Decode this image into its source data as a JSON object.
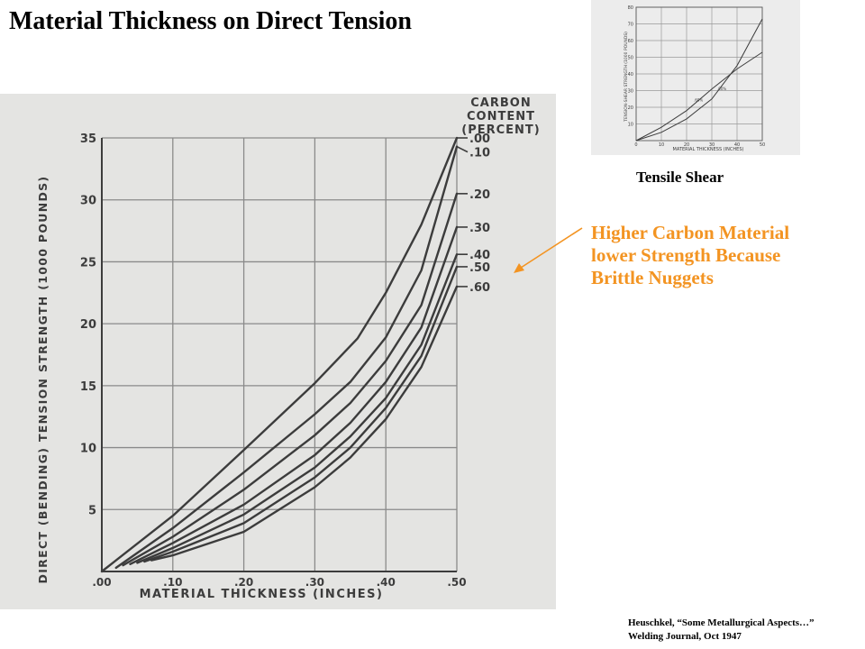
{
  "slide": {
    "title": "Material Thickness on Direct Tension",
    "annotation_lines": [
      "Higher Carbon Material",
      "lower Strength Because",
      "Brittle Nuggets"
    ],
    "thumbnail_caption": "Tensile Shear",
    "citation_lines": [
      "Heuschkel, “Some Metallurgical Aspects…”",
      "Welding Journal, Oct 1947"
    ],
    "colors": {
      "annotation": "#f39422",
      "ink": "#3c3c3c",
      "scan_bg": "#e4e4e2"
    }
  },
  "chart_data": [
    {
      "type": "line",
      "xlabel": "MATERIAL THICKNESS (INCHES)",
      "ylabel": "DIRECT (BENDING) TENSION STRENGTH (1000 POUNDS)",
      "xlim": [
        0,
        0.5
      ],
      "ylim": [
        0,
        35
      ],
      "x_ticks": [
        ".00",
        ".10",
        ".20",
        ".30",
        ".40",
        ".50"
      ],
      "y_ticks": [
        "5",
        "10",
        "15",
        "20",
        "25",
        "30",
        "35"
      ],
      "grid": true,
      "legend_title": [
        "CARBON",
        "CONTENT",
        "(PERCENT)"
      ],
      "legend_placement": "right",
      "series": [
        {
          "name": ".00",
          "points": [
            [
              0,
              0
            ],
            [
              0.1,
              4.5
            ],
            [
              0.2,
              9.8
            ],
            [
              0.3,
              15.2
            ],
            [
              0.36,
              18.8
            ],
            [
              0.4,
              22.5
            ],
            [
              0.45,
              28
            ],
            [
              0.5,
              35
            ]
          ]
        },
        {
          "name": ".10",
          "points": [
            [
              0.02,
              0.3
            ],
            [
              0.1,
              3.5
            ],
            [
              0.2,
              8.0
            ],
            [
              0.3,
              12.7
            ],
            [
              0.35,
              15.3
            ],
            [
              0.4,
              18.9
            ],
            [
              0.45,
              24.3
            ],
            [
              0.5,
              34.3
            ]
          ]
        },
        {
          "name": ".20",
          "points": [
            [
              0.03,
              0.5
            ],
            [
              0.1,
              2.8
            ],
            [
              0.2,
              6.6
            ],
            [
              0.3,
              11.0
            ],
            [
              0.35,
              13.6
            ],
            [
              0.4,
              17.0
            ],
            [
              0.45,
              21.5
            ],
            [
              0.5,
              30.5
            ]
          ]
        },
        {
          "name": ".30",
          "points": [
            [
              0.04,
              0.6
            ],
            [
              0.1,
              2.3
            ],
            [
              0.2,
              5.4
            ],
            [
              0.3,
              9.4
            ],
            [
              0.35,
              12.0
            ],
            [
              0.4,
              15.3
            ],
            [
              0.45,
              19.7
            ],
            [
              0.5,
              27.8
            ]
          ]
        },
        {
          "name": ".40",
          "points": [
            [
              0.05,
              0.7
            ],
            [
              0.1,
              1.9
            ],
            [
              0.2,
              4.6
            ],
            [
              0.3,
              8.4
            ],
            [
              0.35,
              10.9
            ],
            [
              0.4,
              14.0
            ],
            [
              0.45,
              18.3
            ],
            [
              0.5,
              25.6
            ]
          ]
        },
        {
          "name": ".50",
          "points": [
            [
              0.06,
              0.8
            ],
            [
              0.1,
              1.6
            ],
            [
              0.2,
              3.9
            ],
            [
              0.3,
              7.6
            ],
            [
              0.35,
              10.0
            ],
            [
              0.4,
              13.2
            ],
            [
              0.45,
              17.4
            ],
            [
              0.5,
              24.6
            ]
          ]
        },
        {
          "name": ".60",
          "points": [
            [
              0.07,
              0.9
            ],
            [
              0.1,
              1.3
            ],
            [
              0.2,
              3.2
            ],
            [
              0.3,
              6.8
            ],
            [
              0.35,
              9.2
            ],
            [
              0.4,
              12.3
            ],
            [
              0.45,
              16.5
            ],
            [
              0.5,
              23.0
            ]
          ]
        }
      ]
    },
    {
      "type": "line",
      "xlabel": "MATERIAL THICKNESS (INCHES)",
      "ylabel": "TENSION-SHEAR STRENGTH (1000 POUNDS)",
      "xlim": [
        0,
        50
      ],
      "ylim": [
        0,
        80
      ],
      "x_ticks": [
        "0",
        "10",
        "20",
        "30",
        "40",
        "50"
      ],
      "y_ticks": [
        "10",
        "20",
        "30",
        "40",
        "50",
        "60",
        "70",
        "80"
      ],
      "grid": true,
      "series": [
        {
          "name": ".00%",
          "points": [
            [
              0,
              0
            ],
            [
              10,
              5
            ],
            [
              20,
              13
            ],
            [
              30,
              25
            ],
            [
              40,
              45
            ],
            [
              50,
              73
            ]
          ]
        },
        {
          "name": ".60%",
          "points": [
            [
              0,
              0
            ],
            [
              10,
              8
            ],
            [
              20,
              18
            ],
            [
              30,
              31
            ],
            [
              40,
              43
            ],
            [
              50,
              53
            ]
          ]
        }
      ]
    }
  ]
}
